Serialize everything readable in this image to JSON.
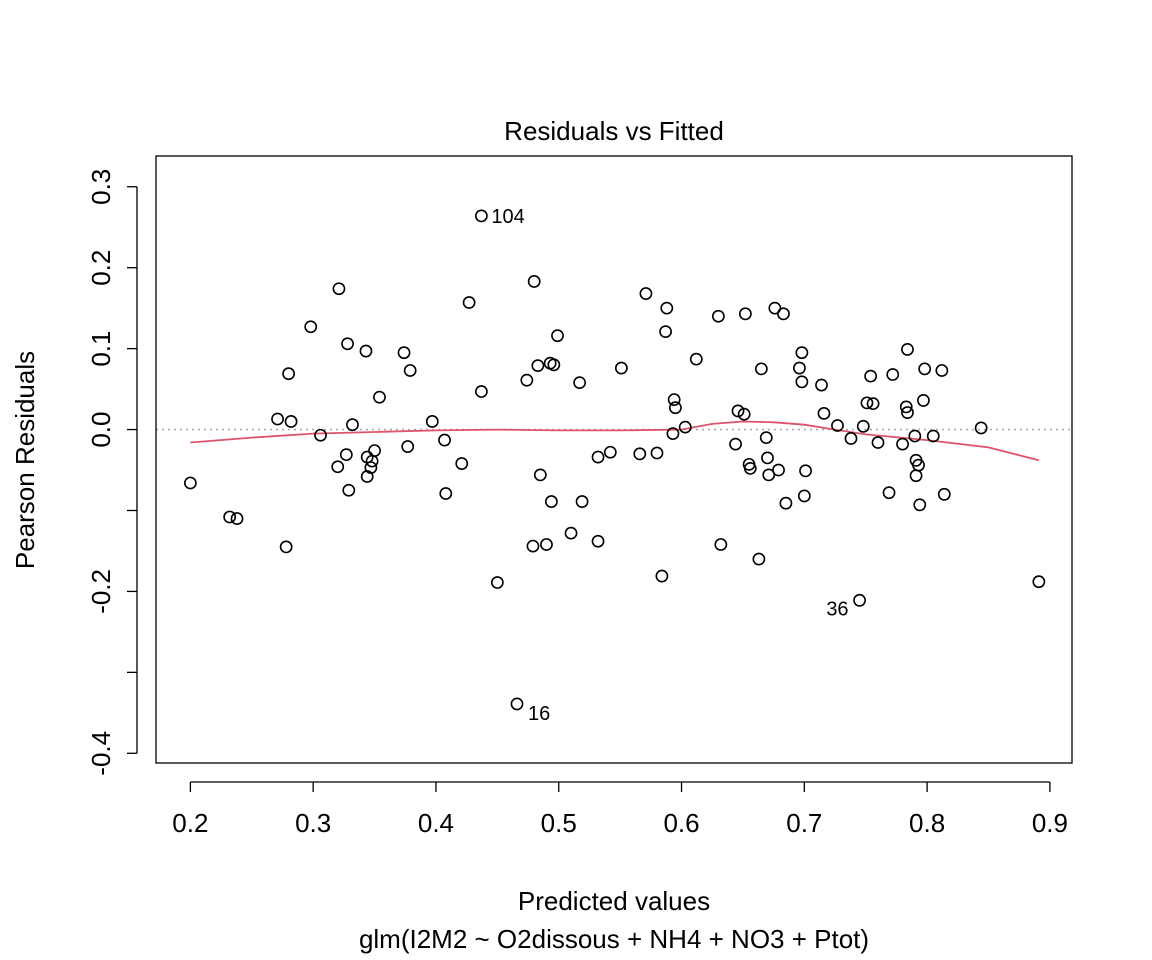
{
  "chart_data": {
    "type": "scatter",
    "title": "Residuals vs Fitted",
    "xlabel": "Predicted values",
    "subtitle": "glm(I2M2 ~ O2dissous + NH4 + NO3 + Ptot)",
    "ylabel": "Pearson Residuals",
    "xlim": [
      0.172,
      0.918
    ],
    "ylim": [
      -0.412,
      0.338
    ],
    "x_ticks": [
      0.2,
      0.3,
      0.4,
      0.5,
      0.6,
      0.7,
      0.8,
      0.9
    ],
    "x_tick_labels": [
      "0.2",
      "0.3",
      "0.4",
      "0.5",
      "0.6",
      "0.7",
      "0.8",
      "0.9"
    ],
    "y_ticks": [
      -0.4,
      -0.2,
      0.0,
      0.1,
      0.2,
      0.3
    ],
    "y_tick_labels": [
      "-0.4",
      "-0.2",
      "0.0",
      "0.1",
      "0.2",
      "0.3"
    ],
    "y_minor_ticks": [
      -0.3,
      -0.1
    ],
    "grid": false,
    "zero_line": 0,
    "colors": {
      "points": "#000000",
      "smoother": "#DF536B",
      "zero_line": "#AAAAAA",
      "frame": "#000000"
    },
    "points": [
      {
        "x": 0.2,
        "y": -0.066
      },
      {
        "x": 0.232,
        "y": -0.108
      },
      {
        "x": 0.238,
        "y": -0.11
      },
      {
        "x": 0.271,
        "y": 0.013
      },
      {
        "x": 0.278,
        "y": -0.145
      },
      {
        "x": 0.28,
        "y": 0.069
      },
      {
        "x": 0.282,
        "y": 0.01
      },
      {
        "x": 0.298,
        "y": 0.127
      },
      {
        "x": 0.306,
        "y": -0.007
      },
      {
        "x": 0.32,
        "y": -0.046
      },
      {
        "x": 0.321,
        "y": 0.174
      },
      {
        "x": 0.327,
        "y": -0.031
      },
      {
        "x": 0.328,
        "y": 0.106
      },
      {
        "x": 0.329,
        "y": -0.075
      },
      {
        "x": 0.332,
        "y": 0.006
      },
      {
        "x": 0.343,
        "y": 0.097
      },
      {
        "x": 0.344,
        "y": -0.034
      },
      {
        "x": 0.344,
        "y": -0.058
      },
      {
        "x": 0.347,
        "y": -0.047
      },
      {
        "x": 0.348,
        "y": -0.039
      },
      {
        "x": 0.35,
        "y": -0.026
      },
      {
        "x": 0.354,
        "y": 0.04
      },
      {
        "x": 0.374,
        "y": 0.095
      },
      {
        "x": 0.377,
        "y": -0.021
      },
      {
        "x": 0.379,
        "y": 0.073
      },
      {
        "x": 0.397,
        "y": 0.01
      },
      {
        "x": 0.407,
        "y": -0.013
      },
      {
        "x": 0.408,
        "y": -0.079
      },
      {
        "x": 0.421,
        "y": -0.042
      },
      {
        "x": 0.427,
        "y": 0.157
      },
      {
        "x": 0.437,
        "y": 0.047
      },
      {
        "x": 0.437,
        "y": 0.264,
        "label": "104"
      },
      {
        "x": 0.45,
        "y": -0.189
      },
      {
        "x": 0.466,
        "y": -0.339,
        "label": "16"
      },
      {
        "x": 0.474,
        "y": 0.061
      },
      {
        "x": 0.479,
        "y": -0.144
      },
      {
        "x": 0.48,
        "y": 0.183
      },
      {
        "x": 0.483,
        "y": 0.079
      },
      {
        "x": 0.485,
        "y": -0.056
      },
      {
        "x": 0.49,
        "y": -0.142
      },
      {
        "x": 0.493,
        "y": 0.082
      },
      {
        "x": 0.494,
        "y": -0.089
      },
      {
        "x": 0.496,
        "y": 0.08
      },
      {
        "x": 0.499,
        "y": 0.116
      },
      {
        "x": 0.51,
        "y": -0.128
      },
      {
        "x": 0.517,
        "y": 0.058
      },
      {
        "x": 0.519,
        "y": -0.089
      },
      {
        "x": 0.532,
        "y": -0.034
      },
      {
        "x": 0.532,
        "y": -0.138
      },
      {
        "x": 0.542,
        "y": -0.028
      },
      {
        "x": 0.551,
        "y": 0.076
      },
      {
        "x": 0.566,
        "y": -0.03
      },
      {
        "x": 0.571,
        "y": 0.168
      },
      {
        "x": 0.58,
        "y": -0.029
      },
      {
        "x": 0.584,
        "y": -0.181
      },
      {
        "x": 0.587,
        "y": 0.121
      },
      {
        "x": 0.588,
        "y": 0.15
      },
      {
        "x": 0.593,
        "y": -0.005
      },
      {
        "x": 0.594,
        "y": 0.037
      },
      {
        "x": 0.595,
        "y": 0.027
      },
      {
        "x": 0.603,
        "y": 0.003
      },
      {
        "x": 0.612,
        "y": 0.087
      },
      {
        "x": 0.63,
        "y": 0.14
      },
      {
        "x": 0.632,
        "y": -0.142
      },
      {
        "x": 0.644,
        "y": -0.018
      },
      {
        "x": 0.646,
        "y": 0.023
      },
      {
        "x": 0.651,
        "y": 0.019
      },
      {
        "x": 0.652,
        "y": 0.143
      },
      {
        "x": 0.655,
        "y": -0.043
      },
      {
        "x": 0.656,
        "y": -0.048
      },
      {
        "x": 0.663,
        "y": -0.16
      },
      {
        "x": 0.665,
        "y": 0.075
      },
      {
        "x": 0.669,
        "y": -0.01
      },
      {
        "x": 0.67,
        "y": -0.035
      },
      {
        "x": 0.671,
        "y": -0.056
      },
      {
        "x": 0.676,
        "y": 0.15
      },
      {
        "x": 0.679,
        "y": -0.05
      },
      {
        "x": 0.683,
        "y": 0.143
      },
      {
        "x": 0.685,
        "y": -0.091
      },
      {
        "x": 0.696,
        "y": 0.076
      },
      {
        "x": 0.698,
        "y": 0.095
      },
      {
        "x": 0.698,
        "y": 0.059
      },
      {
        "x": 0.7,
        "y": -0.082
      },
      {
        "x": 0.701,
        "y": -0.051
      },
      {
        "x": 0.714,
        "y": 0.055
      },
      {
        "x": 0.716,
        "y": 0.02
      },
      {
        "x": 0.727,
        "y": 0.005
      },
      {
        "x": 0.738,
        "y": -0.011
      },
      {
        "x": 0.745,
        "y": -0.211,
        "label": "36"
      },
      {
        "x": 0.748,
        "y": 0.004
      },
      {
        "x": 0.751,
        "y": 0.033
      },
      {
        "x": 0.754,
        "y": 0.066
      },
      {
        "x": 0.756,
        "y": 0.032
      },
      {
        "x": 0.76,
        "y": -0.016
      },
      {
        "x": 0.769,
        "y": -0.078
      },
      {
        "x": 0.772,
        "y": 0.068
      },
      {
        "x": 0.78,
        "y": -0.018
      },
      {
        "x": 0.783,
        "y": 0.028
      },
      {
        "x": 0.784,
        "y": 0.021
      },
      {
        "x": 0.784,
        "y": 0.099
      },
      {
        "x": 0.79,
        "y": -0.008
      },
      {
        "x": 0.791,
        "y": -0.038
      },
      {
        "x": 0.791,
        "y": -0.057
      },
      {
        "x": 0.793,
        "y": -0.044
      },
      {
        "x": 0.794,
        "y": -0.093
      },
      {
        "x": 0.797,
        "y": 0.036
      },
      {
        "x": 0.798,
        "y": 0.075
      },
      {
        "x": 0.805,
        "y": -0.008
      },
      {
        "x": 0.812,
        "y": 0.073
      },
      {
        "x": 0.814,
        "y": -0.08
      },
      {
        "x": 0.844,
        "y": 0.002
      },
      {
        "x": 0.891,
        "y": -0.188
      }
    ],
    "smoother": {
      "x": [
        0.2,
        0.25,
        0.3,
        0.35,
        0.4,
        0.45,
        0.5,
        0.55,
        0.6,
        0.625,
        0.65,
        0.675,
        0.7,
        0.725,
        0.75,
        0.8,
        0.85,
        0.891
      ],
      "y": [
        -0.016,
        -0.01,
        -0.005,
        -0.003,
        -0.001,
        0.0,
        -0.001,
        -0.001,
        0.0,
        0.007,
        0.01,
        0.009,
        0.006,
        0.0,
        -0.006,
        -0.013,
        -0.022,
        -0.038
      ]
    }
  }
}
